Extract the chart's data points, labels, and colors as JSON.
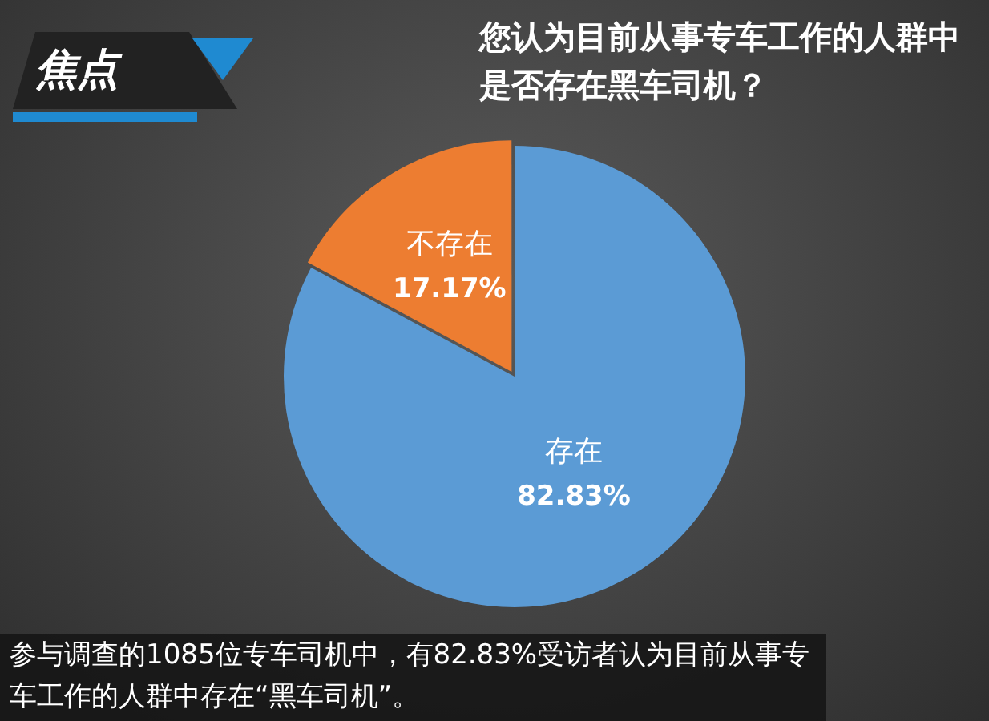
{
  "chart_data": {
    "type": "pie",
    "title": "您认为目前从事专车工作的人群中是否存在黑车司机？",
    "categories": [
      "存在",
      "不存在"
    ],
    "values": [
      82.83,
      17.17
    ],
    "colors": [
      "#5b9bd5",
      "#ed7d31"
    ],
    "value_labels": [
      "82.83%",
      "17.17%"
    ],
    "legend": false,
    "annotations": [
      "焦点",
      "参与调查的1085位专车司机中，有82.83%受访者认为目前从事专车工作的人群中存在“黑车司机”。"
    ]
  }
}
